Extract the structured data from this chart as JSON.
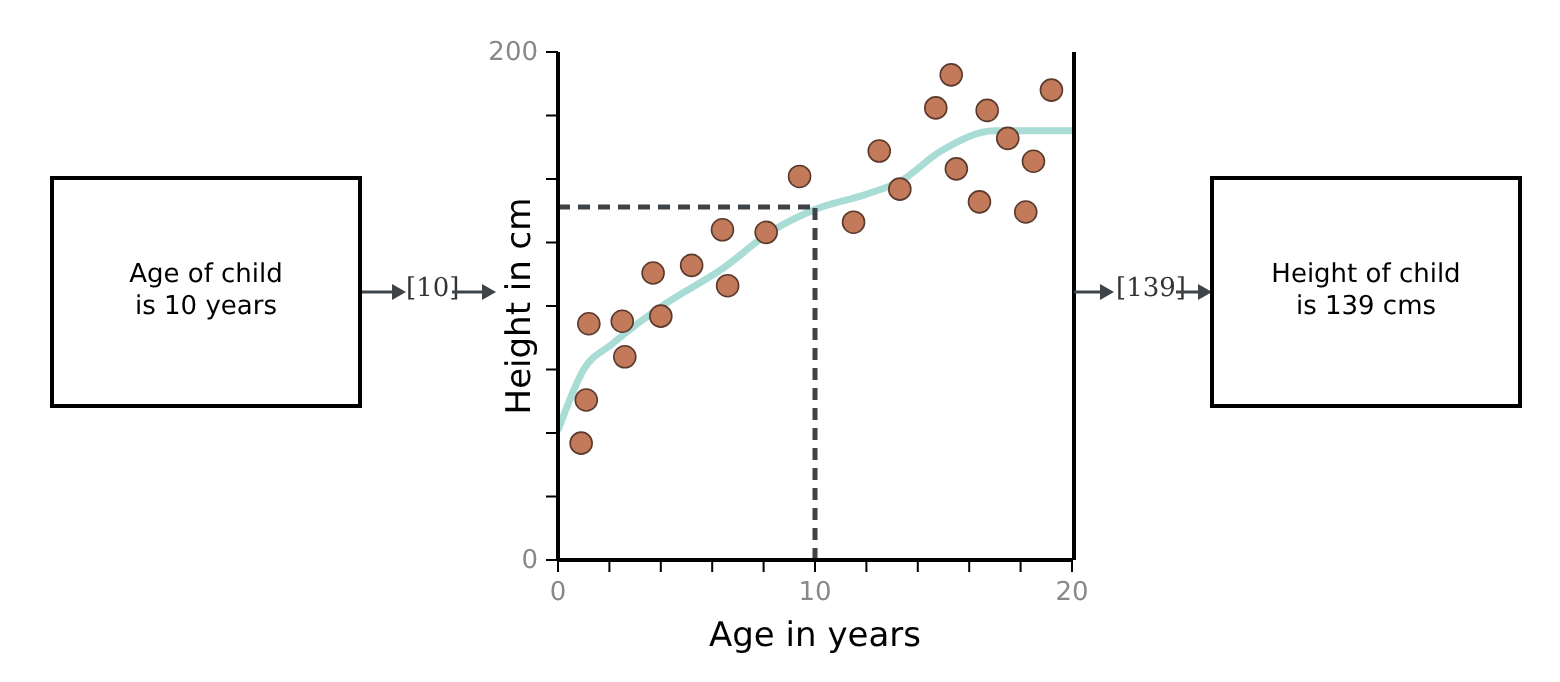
{
  "chart_data": {
    "type": "scatter",
    "xlabel": "Age in years",
    "ylabel": "Height in cm",
    "xlim": [
      0,
      20
    ],
    "xticks": [
      0,
      {
        "value": 2,
        "label": null
      },
      {
        "value": 4,
        "label": null
      },
      {
        "value": 6,
        "label": null
      },
      {
        "value": 8,
        "label": null
      },
      10,
      {
        "value": 12,
        "label": null
      },
      {
        "value": 14,
        "label": null
      },
      {
        "value": 16,
        "label": null
      },
      {
        "value": 18,
        "label": null
      },
      20
    ],
    "ylim": [
      0,
      200
    ],
    "yticks": [
      0,
      {
        "value": 25,
        "label": null
      },
      {
        "value": 50,
        "label": null
      },
      {
        "value": 75,
        "label": null
      },
      {
        "value": 100,
        "label": null
      },
      {
        "value": 125,
        "label": null
      },
      {
        "value": 150,
        "label": null
      },
      {
        "value": 175,
        "label": null
      },
      200
    ],
    "grid": false,
    "marker": "circle",
    "legend": false,
    "series": [
      {
        "color": "#c27a5b",
        "x": [
          0.9,
          1.1,
          1.2,
          2.5,
          2.6,
          3.7,
          4.0,
          5.2,
          6.4,
          6.6,
          8.1,
          9.4,
          11.5,
          12.5,
          13.3,
          14.7,
          15.3,
          15.5,
          16.7,
          16.4,
          17.5,
          18.2,
          18.5,
          19.2
        ],
        "values": [
          46,
          63,
          93,
          94,
          80,
          113,
          96,
          116,
          130,
          108,
          129,
          151,
          133,
          161,
          146,
          178,
          191,
          154,
          177,
          141,
          166,
          137,
          157,
          185
        ]
      },
      {
        "type": "line",
        "color": "#a8dcd4",
        "marker": "none",
        "line_style": "solid",
        "x": [
          0,
          1,
          2.1,
          4.2,
          6.3,
          8.4,
          10,
          12,
          13.3,
          14.9,
          17,
          20
        ],
        "values": [
          51,
          75,
          85,
          101,
          114,
          130,
          138,
          144,
          149,
          161,
          169,
          169
        ]
      }
    ],
    "ref_lines": [
      {
        "axis": "x",
        "value": 10,
        "color": "#3f4448",
        "line_style": "dashed"
      },
      {
        "axis": "y",
        "value": 139,
        "color": "#3f4448",
        "line_style": "dashed"
      }
    ],
    "annotations": [
      "Age of child\nis 10 years",
      "[10]",
      "[139]",
      "Height of child\nis 139 cms"
    ]
  }
}
